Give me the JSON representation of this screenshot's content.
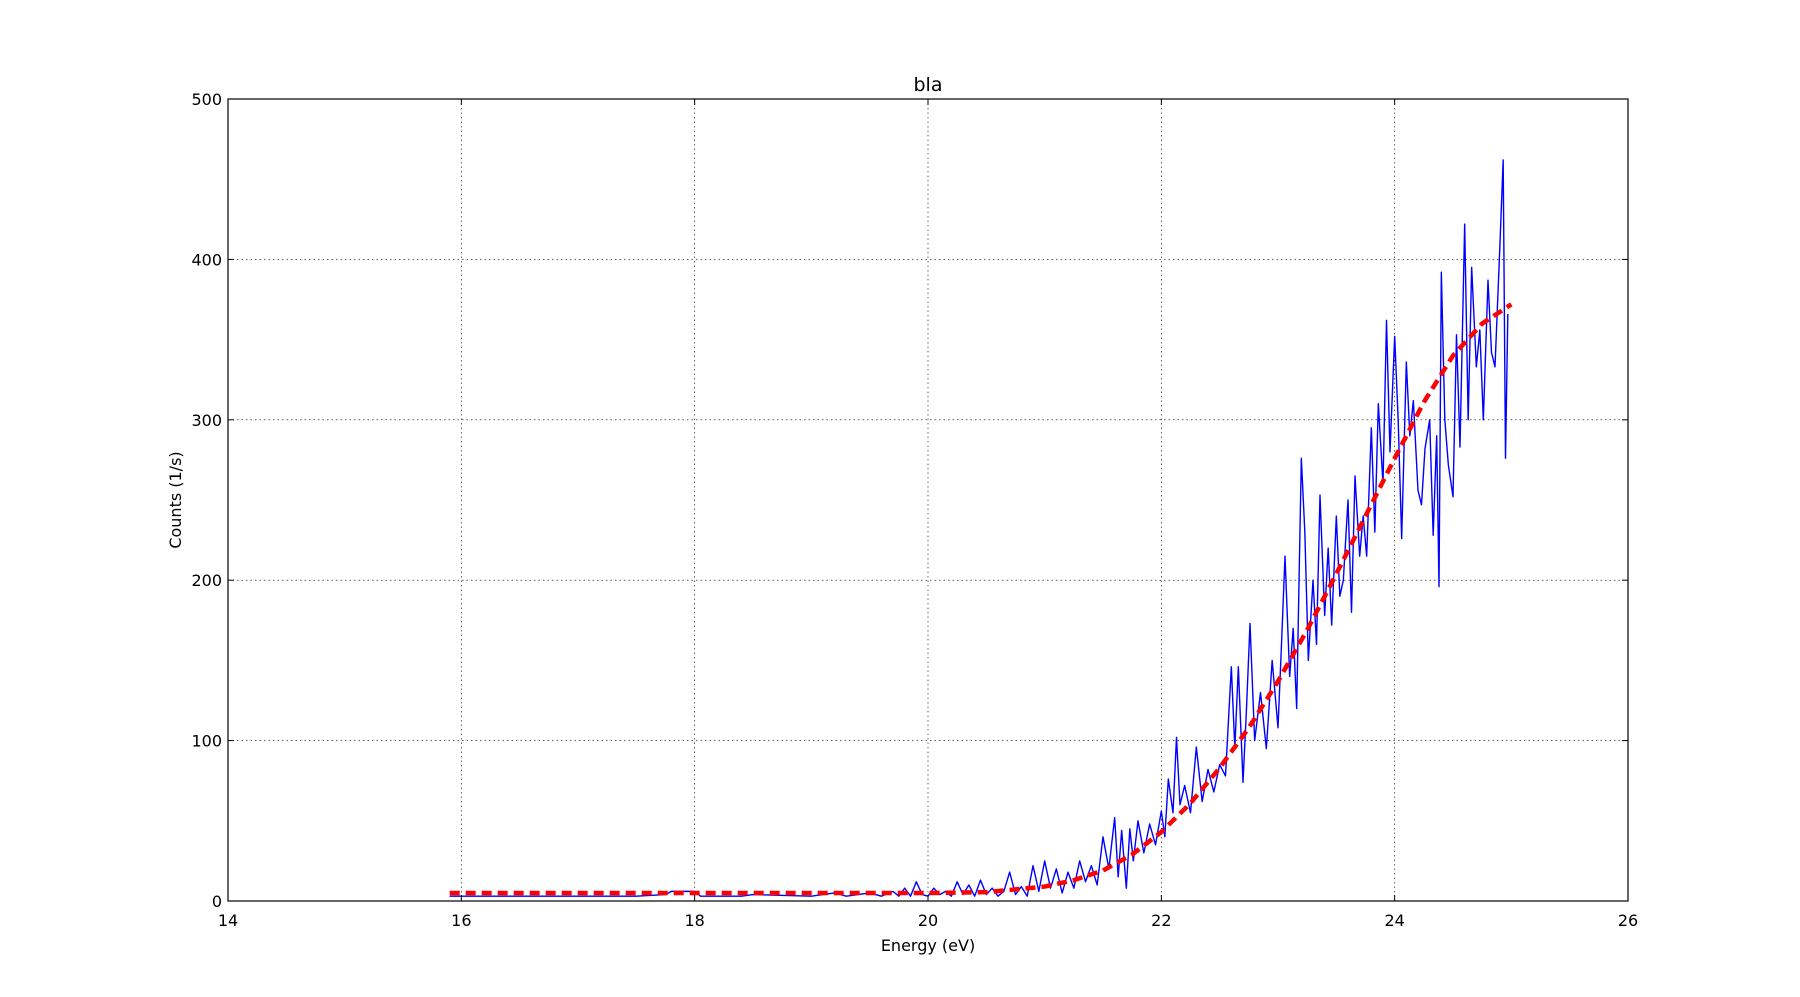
{
  "chart_data": {
    "type": "line",
    "title": "bla",
    "xlabel": "Energy (eV)",
    "ylabel": "Counts (1/s)",
    "xlim": [
      14,
      26
    ],
    "ylim": [
      0,
      500
    ],
    "xticks": [
      14,
      16,
      18,
      20,
      22,
      24,
      26
    ],
    "yticks": [
      0,
      100,
      200,
      300,
      400,
      500
    ],
    "xtick_labels": [
      "14",
      "16",
      "18",
      "20",
      "22",
      "24",
      "26"
    ],
    "ytick_labels": [
      "0",
      "100",
      "200",
      "300",
      "400",
      "500"
    ],
    "grid": true,
    "legend": "none",
    "series": [
      {
        "style": "solid",
        "color": "#0000ff",
        "points": [
          [
            15.9,
            3
          ],
          [
            16.5,
            3
          ],
          [
            17.0,
            3
          ],
          [
            17.5,
            3
          ],
          [
            17.75,
            4
          ],
          [
            17.8,
            6
          ],
          [
            18.0,
            6
          ],
          [
            18.05,
            3
          ],
          [
            18.4,
            3
          ],
          [
            18.5,
            4
          ],
          [
            19.0,
            3
          ],
          [
            19.2,
            5
          ],
          [
            19.3,
            3
          ],
          [
            19.5,
            5
          ],
          [
            19.6,
            3
          ],
          [
            19.7,
            6
          ],
          [
            19.75,
            3
          ],
          [
            19.8,
            8
          ],
          [
            19.85,
            3
          ],
          [
            19.9,
            12
          ],
          [
            19.95,
            4
          ],
          [
            20.0,
            3
          ],
          [
            20.05,
            8
          ],
          [
            20.1,
            4
          ],
          [
            20.15,
            6
          ],
          [
            20.2,
            3
          ],
          [
            20.25,
            12
          ],
          [
            20.3,
            4
          ],
          [
            20.35,
            10
          ],
          [
            20.4,
            3
          ],
          [
            20.45,
            13
          ],
          [
            20.5,
            4
          ],
          [
            20.55,
            8
          ],
          [
            20.6,
            3
          ],
          [
            20.65,
            6
          ],
          [
            20.7,
            18
          ],
          [
            20.75,
            4
          ],
          [
            20.8,
            9
          ],
          [
            20.85,
            3
          ],
          [
            20.9,
            22
          ],
          [
            20.95,
            6
          ],
          [
            21.0,
            25
          ],
          [
            21.05,
            8
          ],
          [
            21.1,
            20
          ],
          [
            21.15,
            5
          ],
          [
            21.2,
            18
          ],
          [
            21.25,
            8
          ],
          [
            21.3,
            25
          ],
          [
            21.35,
            12
          ],
          [
            21.4,
            22
          ],
          [
            21.45,
            10
          ],
          [
            21.5,
            40
          ],
          [
            21.55,
            20
          ],
          [
            21.6,
            52
          ],
          [
            21.63,
            15
          ],
          [
            21.66,
            44
          ],
          [
            21.7,
            8
          ],
          [
            21.73,
            45
          ],
          [
            21.76,
            25
          ],
          [
            21.8,
            50
          ],
          [
            21.85,
            30
          ],
          [
            21.9,
            48
          ],
          [
            21.95,
            35
          ],
          [
            22.0,
            56
          ],
          [
            22.03,
            40
          ],
          [
            22.06,
            76
          ],
          [
            22.1,
            55
          ],
          [
            22.13,
            102
          ],
          [
            22.16,
            60
          ],
          [
            22.2,
            72
          ],
          [
            22.25,
            55
          ],
          [
            22.3,
            96
          ],
          [
            22.35,
            62
          ],
          [
            22.4,
            82
          ],
          [
            22.45,
            68
          ],
          [
            22.5,
            85
          ],
          [
            22.55,
            78
          ],
          [
            22.6,
            146
          ],
          [
            22.63,
            95
          ],
          [
            22.66,
            146
          ],
          [
            22.7,
            74
          ],
          [
            22.73,
            120
          ],
          [
            22.76,
            173
          ],
          [
            22.8,
            100
          ],
          [
            22.85,
            130
          ],
          [
            22.9,
            95
          ],
          [
            22.95,
            150
          ],
          [
            23.0,
            108
          ],
          [
            23.03,
            160
          ],
          [
            23.06,
            215
          ],
          [
            23.1,
            140
          ],
          [
            23.13,
            170
          ],
          [
            23.16,
            120
          ],
          [
            23.2,
            276
          ],
          [
            23.23,
            230
          ],
          [
            23.26,
            150
          ],
          [
            23.3,
            200
          ],
          [
            23.33,
            160
          ],
          [
            23.36,
            253
          ],
          [
            23.4,
            178
          ],
          [
            23.43,
            220
          ],
          [
            23.46,
            172
          ],
          [
            23.5,
            240
          ],
          [
            23.53,
            190
          ],
          [
            23.56,
            200
          ],
          [
            23.6,
            250
          ],
          [
            23.63,
            180
          ],
          [
            23.66,
            265
          ],
          [
            23.7,
            215
          ],
          [
            23.73,
            240
          ],
          [
            23.76,
            215
          ],
          [
            23.8,
            295
          ],
          [
            23.83,
            230
          ],
          [
            23.86,
            310
          ],
          [
            23.9,
            260
          ],
          [
            23.93,
            362
          ],
          [
            23.96,
            280
          ],
          [
            24.0,
            352
          ],
          [
            24.03,
            300
          ],
          [
            24.06,
            226
          ],
          [
            24.1,
            336
          ],
          [
            24.13,
            290
          ],
          [
            24.16,
            312
          ],
          [
            24.2,
            256
          ],
          [
            24.23,
            247
          ],
          [
            24.26,
            282
          ],
          [
            24.3,
            300
          ],
          [
            24.33,
            228
          ],
          [
            24.36,
            290
          ],
          [
            24.38,
            196
          ],
          [
            24.4,
            392
          ],
          [
            24.43,
            300
          ],
          [
            24.46,
            272
          ],
          [
            24.5,
            252
          ],
          [
            24.53,
            353
          ],
          [
            24.56,
            283
          ],
          [
            24.6,
            422
          ],
          [
            24.63,
            300
          ],
          [
            24.66,
            395
          ],
          [
            24.7,
            333
          ],
          [
            24.73,
            356
          ],
          [
            24.76,
            300
          ],
          [
            24.8,
            387
          ],
          [
            24.83,
            342
          ],
          [
            24.86,
            333
          ],
          [
            24.9,
            405
          ],
          [
            24.93,
            462
          ],
          [
            24.95,
            276
          ],
          [
            24.97,
            366
          ]
        ]
      },
      {
        "style": "dashed",
        "color": "#ff0000",
        "points": [
          [
            15.9,
            5
          ],
          [
            20.0,
            5
          ],
          [
            20.5,
            5.5
          ],
          [
            21.0,
            9
          ],
          [
            21.25,
            13
          ],
          [
            21.5,
            19
          ],
          [
            21.75,
            29
          ],
          [
            22.0,
            43
          ],
          [
            22.25,
            61
          ],
          [
            22.5,
            83
          ],
          [
            22.75,
            108
          ],
          [
            23.0,
            137
          ],
          [
            23.25,
            169
          ],
          [
            23.5,
            204
          ],
          [
            23.75,
            240
          ],
          [
            24.0,
            276
          ],
          [
            24.25,
            311
          ],
          [
            24.5,
            340
          ],
          [
            24.75,
            360
          ],
          [
            25.0,
            372
          ]
        ]
      }
    ]
  }
}
